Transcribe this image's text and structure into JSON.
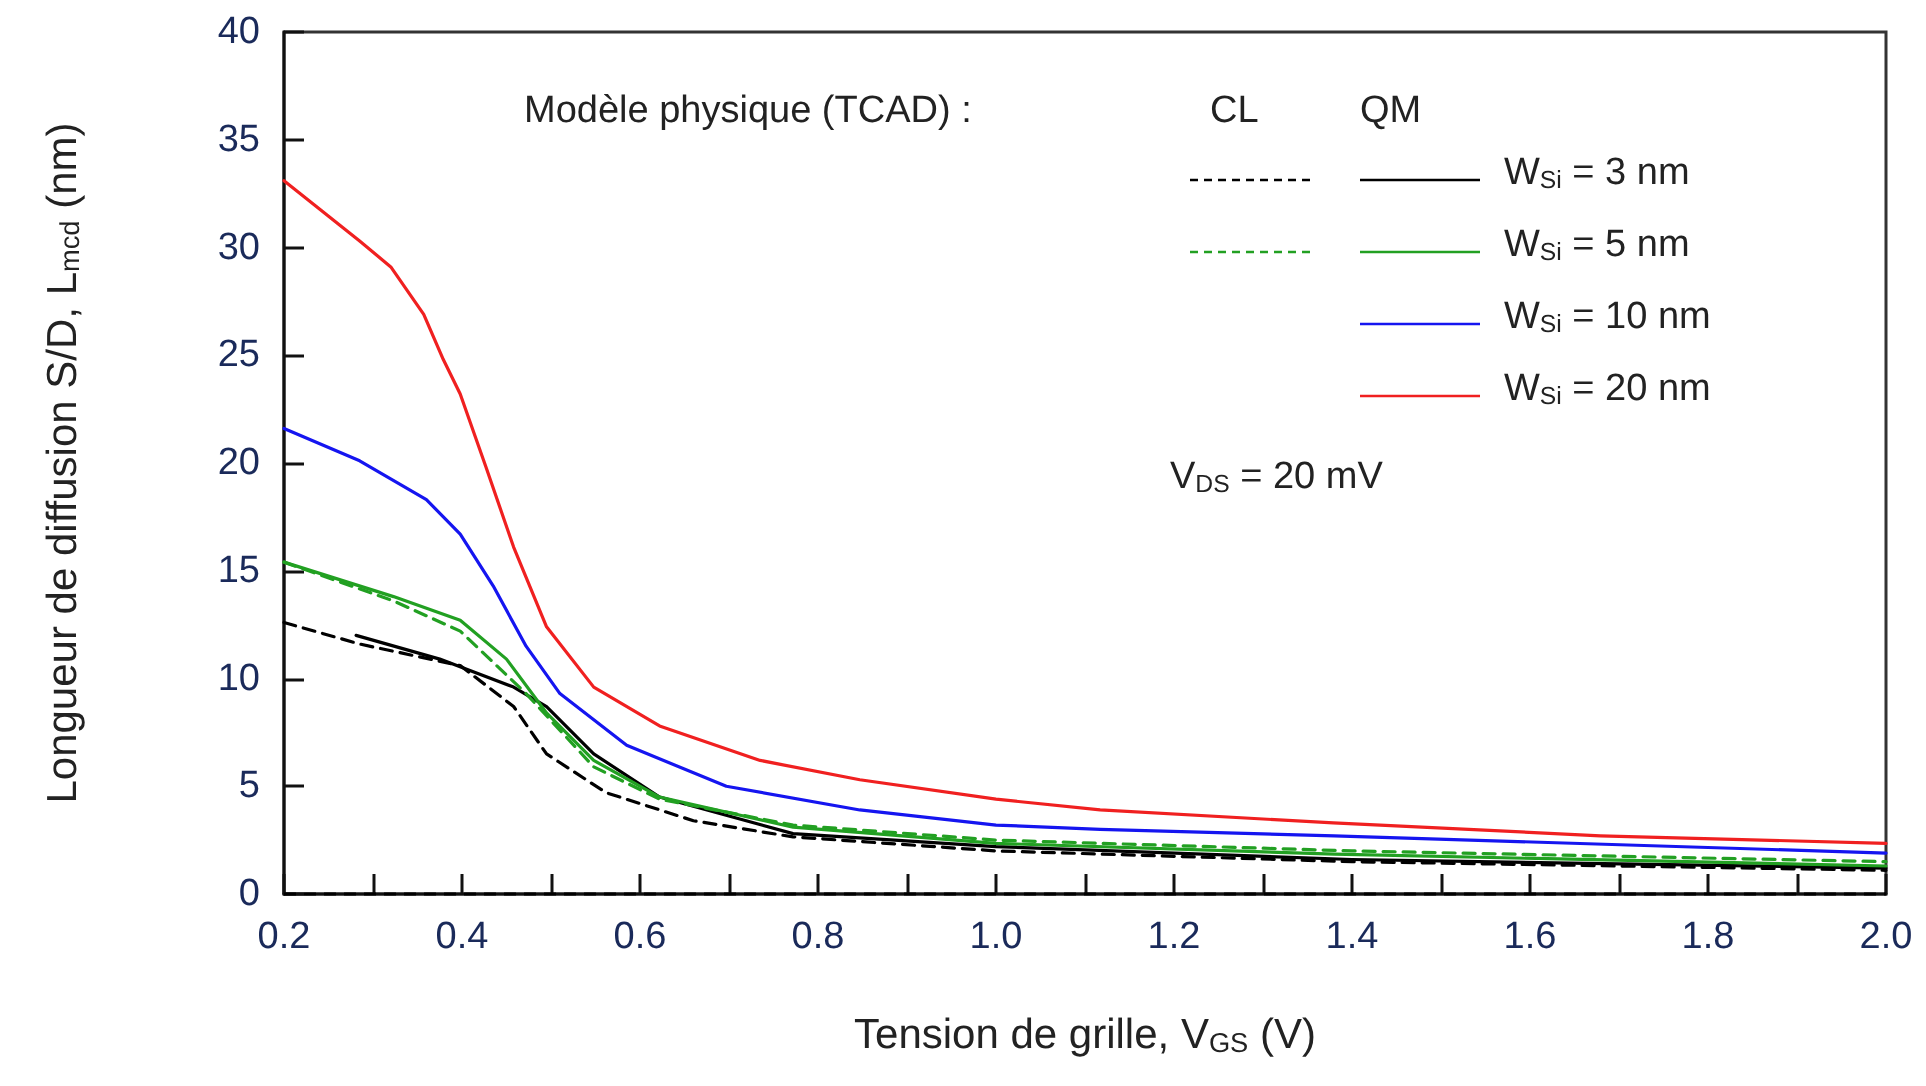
{
  "chart_data": {
    "type": "line",
    "xlabel": "Tension de grille, V$_{GS}$ (V)",
    "ylabel": "Longueur de diffusion S/D, L$_{mcd}$ (nm)",
    "xlim": [
      0.2,
      2.0
    ],
    "ylim": [
      0,
      40
    ],
    "xticks": [
      {
        "value": 0.2,
        "label": "0.2"
      },
      {
        "value": 0.3,
        "label": null
      },
      {
        "value": 0.4,
        "label": "0.4"
      },
      {
        "value": 0.5,
        "label": null
      },
      {
        "value": 0.6,
        "label": "0.6"
      },
      {
        "value": 0.7,
        "label": null
      },
      {
        "value": 0.8,
        "label": "0.8"
      },
      {
        "value": 0.9,
        "label": null
      },
      {
        "value": 1.0,
        "label": "1.0"
      },
      {
        "value": 1.1,
        "label": null
      },
      {
        "value": 1.2,
        "label": "1.2"
      },
      {
        "value": 1.3,
        "label": null
      },
      {
        "value": 1.4,
        "label": "1.4"
      },
      {
        "value": 1.5,
        "label": null
      },
      {
        "value": 1.6,
        "label": "1.6"
      },
      {
        "value": 1.7,
        "label": null
      },
      {
        "value": 1.8,
        "label": "1.8"
      },
      {
        "value": 1.9,
        "label": null
      },
      {
        "value": 2.0,
        "label": "2.0"
      }
    ],
    "yticks": [
      0,
      5,
      10,
      15,
      20,
      25,
      30,
      35,
      40
    ],
    "grid": false,
    "legend": "top right",
    "marker": "none",
    "annotations": [
      "Modèle physique (TCAD) :",
      "CL",
      "QM",
      "V$_{DS}$ = 20 mV"
    ],
    "ref_lines": [
      {
        "axis": "y",
        "value": 0,
        "color": "#000000",
        "line_style": "dashed"
      }
    ],
    "series": [
      {
        "color": "#000000",
        "line_style": "dashed",
        "x": [
          0.2,
          0.285,
          0.398,
          0.458,
          0.495,
          0.562,
          0.66,
          0.772,
          1.0,
          1.4,
          2.0
        ],
        "values": [
          12.6,
          11.6,
          10.6,
          8.7,
          6.5,
          4.7,
          3.4,
          2.65,
          2.0,
          1.5,
          1.1
        ]
      },
      {
        "name": "W$_{Si}$ = 3 nm",
        "color": "#000000",
        "line_style": "solid",
        "x": [
          0.281,
          0.375,
          0.458,
          0.495,
          0.548,
          0.622,
          0.772,
          1.0,
          1.4,
          2.0
        ],
        "values": [
          12.0,
          10.9,
          9.6,
          8.7,
          6.5,
          4.5,
          2.8,
          2.2,
          1.6,
          1.2
        ]
      },
      {
        "color": "#22a022",
        "line_style": "dashed",
        "x": [
          0.2,
          0.323,
          0.398,
          0.472,
          0.548,
          0.622,
          0.772,
          1.0,
          1.4,
          2.0
        ],
        "values": [
          15.4,
          13.6,
          12.2,
          9.3,
          5.9,
          4.4,
          3.2,
          2.5,
          2.0,
          1.5
        ]
      },
      {
        "name": "W$_{Si}$ = 5 nm",
        "color": "#22a022",
        "line_style": "solid",
        "x": [
          0.2,
          0.323,
          0.398,
          0.45,
          0.495,
          0.548,
          0.622,
          0.772,
          1.0,
          1.38,
          2.0
        ],
        "values": [
          15.4,
          13.8,
          12.7,
          10.9,
          8.4,
          6.2,
          4.5,
          3.1,
          2.35,
          1.85,
          1.3
        ]
      },
      {
        "name": "W$_{Si}$ = 10 nm",
        "color": "#1515f0",
        "line_style": "solid",
        "x": [
          0.2,
          0.285,
          0.36,
          0.398,
          0.435,
          0.472,
          0.51,
          0.585,
          0.697,
          0.847,
          1.0,
          1.117,
          1.38,
          2.0
        ],
        "values": [
          21.6,
          20.1,
          18.3,
          16.7,
          14.3,
          11.5,
          9.3,
          6.9,
          5.0,
          3.9,
          3.2,
          3.0,
          2.7,
          1.9
        ]
      },
      {
        "name": "W$_{Si}$ = 20 nm",
        "color": "#f02020",
        "line_style": "solid",
        "x": [
          0.2,
          0.285,
          0.32,
          0.357,
          0.379,
          0.398,
          0.427,
          0.458,
          0.495,
          0.548,
          0.622,
          0.735,
          0.847,
          1.0,
          1.117,
          1.379,
          1.679,
          2.0
        ],
        "values": [
          33.1,
          30.3,
          29.1,
          26.9,
          24.8,
          23.2,
          19.8,
          16.1,
          12.4,
          9.6,
          7.8,
          6.2,
          5.3,
          4.4,
          3.9,
          3.3,
          2.7,
          2.35
        ]
      }
    ]
  }
}
